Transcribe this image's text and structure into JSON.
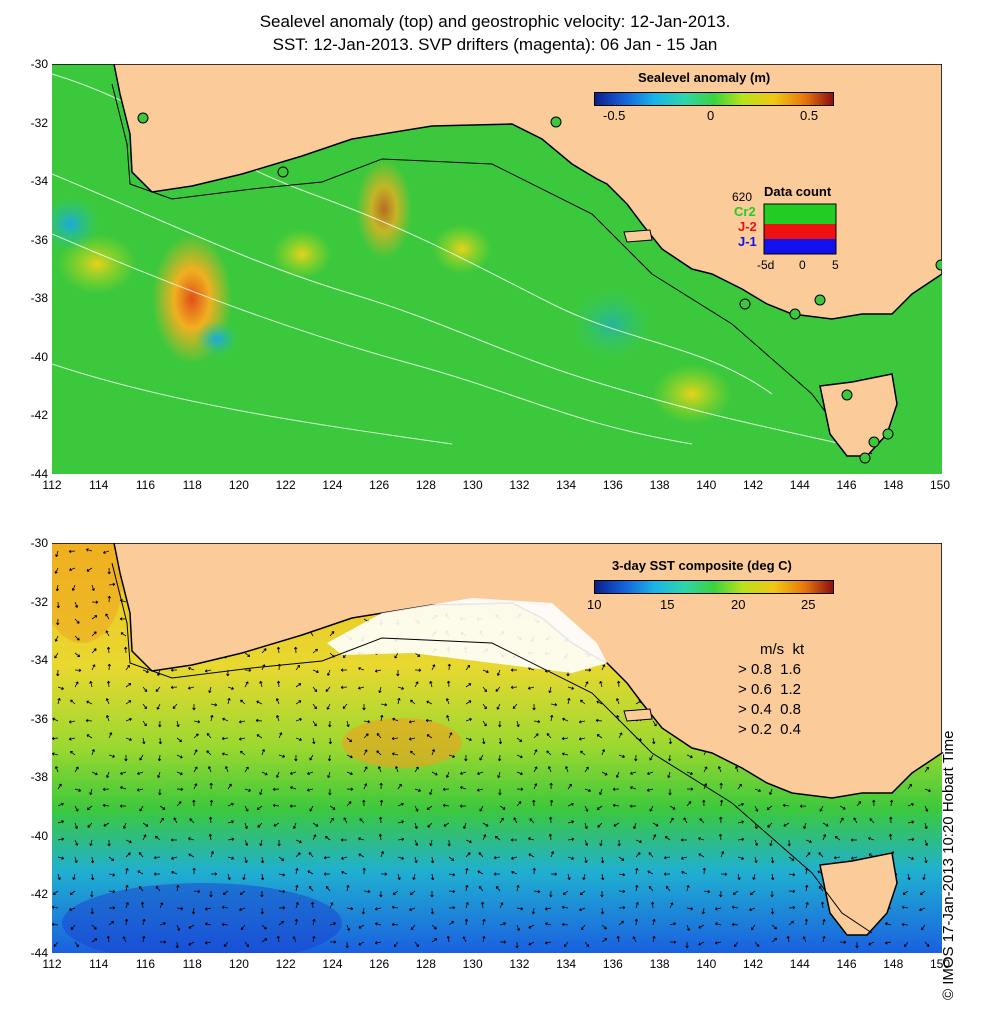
{
  "title_line1": "Sealevel anomaly (top) and geostrophic velocity: 12-Jan-2013.",
  "title_line2": "SST: 12-Jan-2013. SVP drifters (magenta): 06 Jan - 15 Jan",
  "top_panel": {
    "colorbar_title": "Sealevel anomaly (m)",
    "colorbar_ticks": [
      "-0.5",
      "0",
      "0.5"
    ],
    "data_count": {
      "title": "Data count",
      "max_label": "620",
      "series": [
        "Cr2",
        "J-2",
        "J-1"
      ],
      "series_colors": [
        "#22cc22",
        "#ee1111",
        "#1111ee"
      ],
      "x_labels": [
        "-5d",
        "0",
        "5"
      ]
    }
  },
  "bottom_panel": {
    "colorbar_title": "3-day SST composite (deg C)",
    "colorbar_ticks": [
      "10",
      "15",
      "20",
      "25"
    ],
    "speed_legend": {
      "header_ms": "m/s",
      "header_kt": "kt",
      "rows": [
        {
          "ms": "0.8",
          "kt": "1.6"
        },
        {
          "ms": "0.6",
          "kt": "1.2"
        },
        {
          "ms": "0.4",
          "kt": "0.8"
        },
        {
          "ms": "0.2",
          "kt": "0.4"
        }
      ]
    }
  },
  "y_ticks": [
    "-30",
    "-32",
    "-34",
    "-36",
    "-38",
    "-40",
    "-42",
    "-44"
  ],
  "x_ticks": [
    "112",
    "114",
    "116",
    "118",
    "120",
    "122",
    "124",
    "126",
    "128",
    "130",
    "132",
    "134",
    "136",
    "138",
    "140",
    "142",
    "144",
    "146",
    "148",
    "150"
  ],
  "credit": "© IMOS 17-Jan-2013 10:20 Hobart Time",
  "colors": {
    "land": "#fbcb9a",
    "ocean_anomaly_base": "#3cc83c",
    "anomaly_warm": "#f0a020",
    "anomaly_cool": "#1aa8e0",
    "sst_warm": "#f0c020",
    "sst_cool": "#1a70e0",
    "coast_outline": "#000000"
  }
}
